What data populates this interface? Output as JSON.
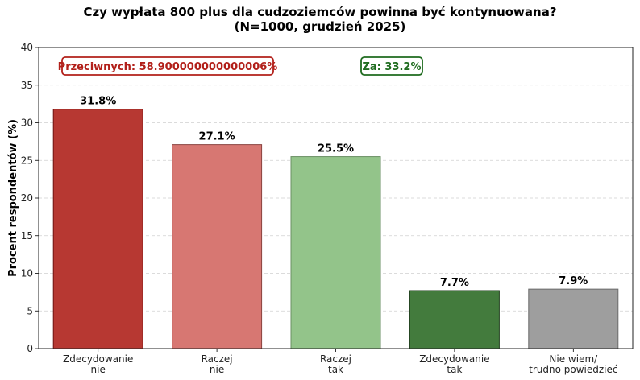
{
  "chart_data": {
    "type": "bar",
    "title": "Czy wypłata 800 plus dla cudzoziemców powinna być kontynuowana?",
    "subtitle": "(N=1000, grudzień 2025)",
    "xlabel": "",
    "ylabel": "Procent respondentów (%)",
    "ylim": [
      0,
      40
    ],
    "yticks": [
      "0",
      "5",
      "10",
      "15",
      "20",
      "25",
      "30",
      "35",
      "40"
    ],
    "grid": "horizontal dashed",
    "categories": [
      [
        "Zdecydowanie",
        "nie"
      ],
      [
        "Raczej",
        "nie"
      ],
      [
        "Raczej",
        "tak"
      ],
      [
        "Zdecydowanie",
        "tak"
      ],
      [
        "Nie wiem/",
        "trudno powiedzieć"
      ]
    ],
    "values": [
      31.8,
      27.1,
      25.5,
      7.7,
      7.9
    ],
    "value_labels": [
      "31.8%",
      "27.1%",
      "25.5%",
      "7.7%",
      "7.9%"
    ],
    "colors": [
      "#b73832",
      "#d77772",
      "#93c48a",
      "#437b3d",
      "#9e9e9e"
    ],
    "edge_colors": [
      "#6e1512",
      "#8a4440",
      "#6a8f63",
      "#22401f",
      "#6a6a6a"
    ],
    "annotations": [
      {
        "text": "Przeciwnych: 58.900000000000006%",
        "color": "#b2201a",
        "position": "top-left"
      },
      {
        "text": "Za: 33.2%",
        "color": "#1e6b1e",
        "position": "top-center"
      }
    ]
  }
}
